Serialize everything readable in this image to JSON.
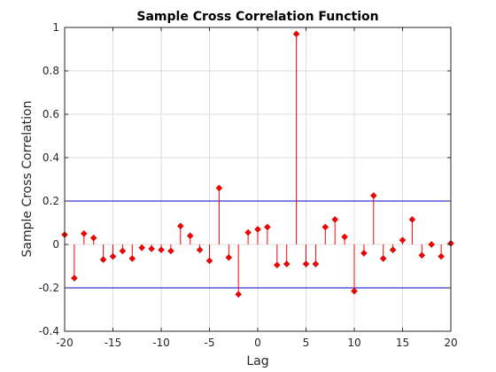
{
  "chart_data": {
    "type": "stem",
    "title": "Sample Cross Correlation Function",
    "xlabel": "Lag",
    "ylabel": "Sample Cross Correlation",
    "xlim": [
      -20,
      20
    ],
    "ylim": [
      -0.4,
      1
    ],
    "xticks": [
      -20,
      -15,
      -10,
      -5,
      0,
      5,
      10,
      15,
      20
    ],
    "yticks": [
      -0.4,
      -0.2,
      0,
      0.2,
      0.4,
      0.6,
      0.8,
      1
    ],
    "xtick_labels": [
      "-20",
      "-15",
      "-10",
      "-5",
      "0",
      "5",
      "10",
      "15",
      "20"
    ],
    "ytick_labels": [
      "-0.4",
      "-0.2",
      "0",
      "0.2",
      "0.4",
      "0.6",
      "0.8",
      "1"
    ],
    "grid": true,
    "confidence_bounds": [
      0.2,
      -0.2
    ],
    "colors": {
      "stem": "#ff0000",
      "marker": "#ff0000",
      "bounds": "#0000cc",
      "grid": "#dedede",
      "axis": "#262626"
    },
    "series": [
      {
        "x": [
          -20,
          -19,
          -18,
          -17,
          -16,
          -15,
          -14,
          -13,
          -12,
          -11,
          -10,
          -9,
          -8,
          -7,
          -6,
          -5,
          -4,
          -3,
          -2,
          -1,
          0,
          1,
          2,
          3,
          4,
          5,
          6,
          7,
          8,
          9,
          10,
          11,
          12,
          13,
          14,
          15,
          16,
          17,
          18,
          19,
          20
        ],
        "y": [
          0.045,
          -0.155,
          0.05,
          0.03,
          -0.07,
          -0.055,
          -0.03,
          -0.065,
          -0.015,
          -0.02,
          -0.025,
          -0.03,
          0.085,
          0.04,
          -0.025,
          -0.075,
          0.26,
          -0.06,
          -0.23,
          0.055,
          0.07,
          0.08,
          -0.095,
          -0.09,
          0.97,
          -0.09,
          -0.09,
          0.08,
          0.115,
          0.035,
          -0.215,
          -0.04,
          0.225,
          -0.065,
          -0.025,
          0.02,
          0.115,
          -0.05,
          0.0,
          -0.055,
          0.005
        ]
      }
    ]
  }
}
